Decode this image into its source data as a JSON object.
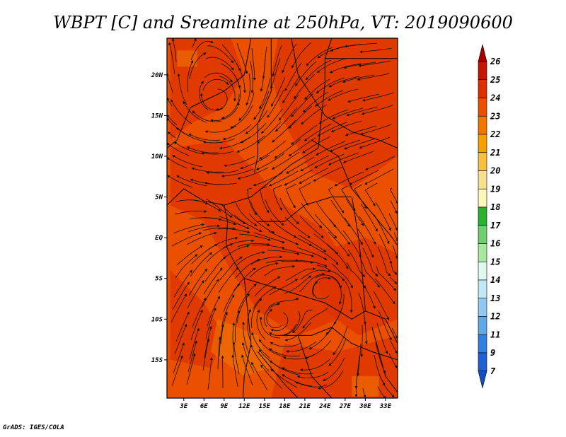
{
  "title": "WBPT [C] and Sreamline at 250hPa, VT: 2019090600",
  "credit": "GrADS: IGES/COLA",
  "chart_data": {
    "type": "heatmap",
    "variable": "WBPT [C]",
    "level": "250hPa",
    "valid_time": "2019090600",
    "overlay": "streamlines",
    "x_ticks": [
      "3E",
      "6E",
      "9E",
      "12E",
      "15E",
      "18E",
      "21E",
      "24E",
      "27E",
      "30E",
      "33E"
    ],
    "x_tick_values": [
      3,
      6,
      9,
      12,
      15,
      18,
      21,
      24,
      27,
      30,
      33
    ],
    "y_ticks": [
      "20N",
      "15N",
      "10N",
      "5N",
      "EQ",
      "5S",
      "10S",
      "15S"
    ],
    "y_tick_values": [
      20,
      15,
      10,
      5,
      0,
      -5,
      -10,
      -15
    ],
    "xlim": [
      0.5,
      34.8
    ],
    "ylim": [
      -19.7,
      24.5
    ],
    "colorbar": {
      "labels": [
        "26",
        "25",
        "24",
        "23",
        "22",
        "21",
        "20",
        "19",
        "18",
        "17",
        "16",
        "15",
        "14",
        "13",
        "12",
        "11",
        "9",
        "7"
      ],
      "colors": [
        "#a50000",
        "#c41600",
        "#dc3000",
        "#ea5000",
        "#f07800",
        "#f8a000",
        "#f8c040",
        "#f8e090",
        "#fcf8b8",
        "#30b030",
        "#70d070",
        "#a8e8a0",
        "#e0f8f0",
        "#c0e8f8",
        "#90c8f0",
        "#60a8e8",
        "#3080e0",
        "#2060d0",
        "#1050c0"
      ],
      "orientation": "vertical",
      "extend": "both"
    },
    "dominant_range": [
      23,
      24
    ],
    "streamline_features": {
      "easterly_flow_north": true,
      "cyclonic_centers": [
        {
          "lon": 8,
          "lat": 17
        },
        {
          "lon": 24,
          "lat": -6
        },
        {
          "lon": 16.5,
          "lat": -10
        }
      ]
    }
  }
}
